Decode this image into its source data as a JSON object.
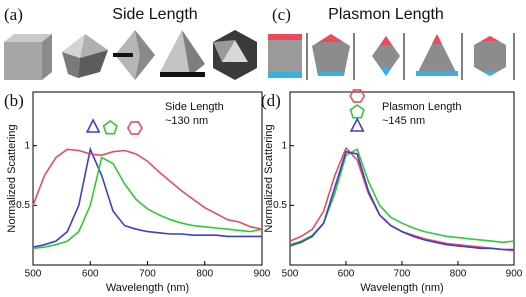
{
  "figure": {
    "panels": [
      {
        "label": "(a)",
        "title": "Side Length"
      },
      {
        "label": "(c)",
        "title": "Plasmon Length"
      }
    ]
  },
  "chart_data": [
    {
      "type": "line",
      "label": "(b)",
      "annotation": [
        "Side Length",
        "~130 nm"
      ],
      "x_label": "Wavelength (nm)",
      "y_label": "Normalized Scattering",
      "x": [
        500,
        520,
        540,
        560,
        580,
        600,
        620,
        640,
        660,
        680,
        700,
        720,
        740,
        760,
        780,
        800,
        820,
        840,
        860,
        880,
        900
      ],
      "xlim": [
        500,
        900
      ],
      "xticks": [
        500,
        600,
        700,
        800,
        900
      ],
      "ylim": [
        0,
        1.45
      ],
      "yticks": [
        0.5,
        1
      ],
      "series": [
        {
          "color": "#3a3fd0",
          "marker": "triangle",
          "values": [
            0.15,
            0.17,
            0.2,
            0.28,
            0.5,
            0.97,
            0.75,
            0.45,
            0.33,
            0.3,
            0.28,
            0.27,
            0.26,
            0.26,
            0.25,
            0.25,
            0.25,
            0.24,
            0.24,
            0.24,
            0.24
          ]
        },
        {
          "color": "#2ecc2e",
          "marker": "pentagon",
          "values": [
            0.14,
            0.15,
            0.17,
            0.2,
            0.28,
            0.5,
            0.9,
            0.85,
            0.68,
            0.55,
            0.47,
            0.42,
            0.38,
            0.35,
            0.33,
            0.32,
            0.31,
            0.3,
            0.29,
            0.28,
            0.3
          ]
        },
        {
          "color": "#ee4a5a",
          "marker": "hexagon",
          "values": [
            0.5,
            0.75,
            0.9,
            0.97,
            0.96,
            0.93,
            0.92,
            0.95,
            0.96,
            0.93,
            0.87,
            0.78,
            0.7,
            0.62,
            0.55,
            0.48,
            0.43,
            0.38,
            0.36,
            0.32,
            0.3
          ]
        }
      ]
    },
    {
      "type": "line",
      "label": "(d)",
      "annotation": [
        "Plasmon Length",
        "~145 nm"
      ],
      "x_label": "Wavelength (nm)",
      "y_label": "Normalized Scattering",
      "x": [
        500,
        520,
        540,
        560,
        580,
        600,
        620,
        640,
        660,
        680,
        700,
        720,
        740,
        760,
        780,
        800,
        820,
        840,
        860,
        880,
        900
      ],
      "xlim": [
        500,
        900
      ],
      "xticks": [
        500,
        600,
        700,
        800,
        900
      ],
      "ylim": [
        0,
        1.45
      ],
      "yticks": [
        0.5,
        1
      ],
      "series": [
        {
          "color": "#ee4a5a",
          "marker": "hexagon",
          "values": [
            0.2,
            0.24,
            0.3,
            0.45,
            0.75,
            0.98,
            0.88,
            0.6,
            0.42,
            0.33,
            0.28,
            0.25,
            0.22,
            0.2,
            0.18,
            0.17,
            0.16,
            0.15,
            0.14,
            0.13,
            0.12
          ]
        },
        {
          "color": "#2ecc2e",
          "marker": "pentagon",
          "values": [
            0.17,
            0.2,
            0.25,
            0.35,
            0.6,
            0.92,
            0.97,
            0.7,
            0.5,
            0.4,
            0.35,
            0.31,
            0.28,
            0.26,
            0.24,
            0.23,
            0.22,
            0.21,
            0.2,
            0.19,
            0.2
          ]
        },
        {
          "color": "#3a3fd0",
          "marker": "triangle",
          "values": [
            0.16,
            0.19,
            0.24,
            0.35,
            0.65,
            0.95,
            0.93,
            0.62,
            0.42,
            0.33,
            0.28,
            0.24,
            0.21,
            0.19,
            0.17,
            0.16,
            0.15,
            0.14,
            0.14,
            0.13,
            0.13
          ]
        }
      ]
    }
  ]
}
